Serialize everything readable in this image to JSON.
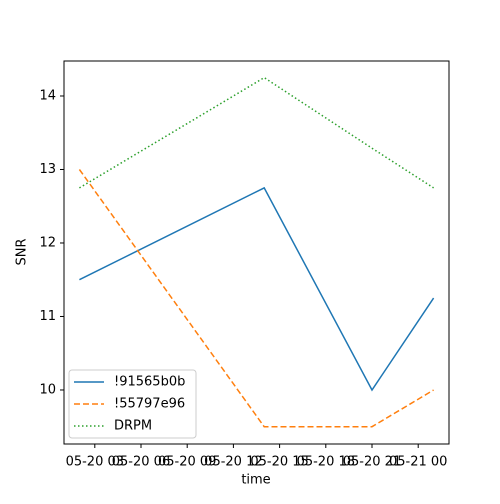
{
  "chart_data": {
    "type": "line",
    "x": [
      "05-20 02",
      "05-20 14",
      "05-20 21",
      "05-21 01"
    ],
    "series": [
      {
        "name": "!91565b0b",
        "color": "#1f77b4",
        "linestyle": "solid",
        "values": [
          11.5,
          12.75,
          10,
          11.25
        ]
      },
      {
        "name": "!55797e96",
        "color": "#ff7f0e",
        "linestyle": "dashed",
        "values": [
          13,
          9.5,
          9.5,
          10
        ]
      },
      {
        "name": "DRPM",
        "color": "#2ca02c",
        "linestyle": "dotted",
        "values": [
          12.75,
          14.25,
          13.29,
          12.75
        ]
      }
    ],
    "xlabel": "time",
    "ylabel": "SNR",
    "xlim": [
      "05-20 01",
      "05-21 02"
    ],
    "xticks": [
      "05-20 03",
      "05-20 06",
      "05-20 09",
      "05-20 12",
      "05-20 15",
      "05-20 18",
      "05-20 21",
      "05-21 00"
    ],
    "ylim": [
      9.265,
      14.476
    ],
    "yticks": [
      10,
      11,
      12,
      13,
      14
    ],
    "legend": "lower left",
    "grid": false
  }
}
